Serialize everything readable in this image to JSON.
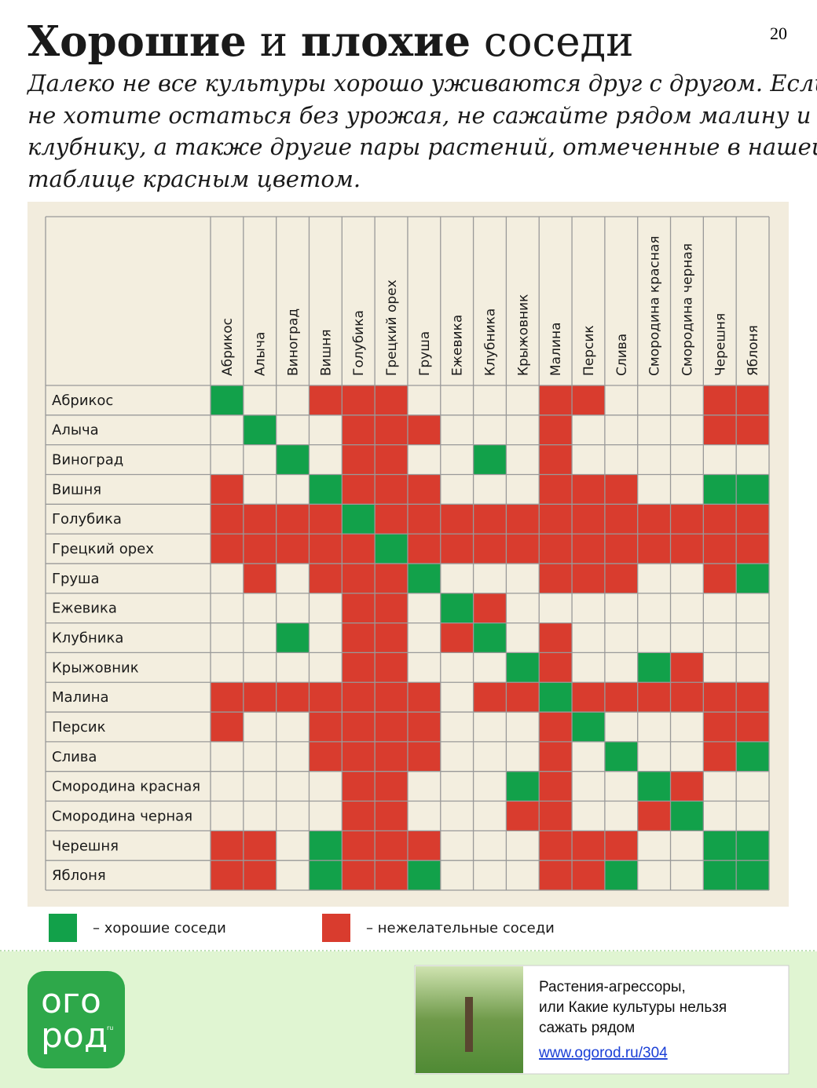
{
  "header": {
    "title": [
      {
        "text": "Хорошие",
        "bold": true
      },
      {
        "text": "и",
        "bold": false
      },
      {
        "text": "плохие",
        "bold": true
      },
      {
        "text": "соседи",
        "bold": false
      }
    ],
    "page_number": "20",
    "intro": [
      "Далеко не все культуры хорошо уживаются друг с другом. Если",
      "не хотите остаться без урожая, не сажайте рядом малину и",
      "клубнику, а также другие пары растений, отмеченные в нашей",
      "таблице красным цветом."
    ]
  },
  "table": {
    "columns": [
      "Абрикос",
      "Алыча",
      "Виноград",
      "Вишня",
      "Голубика",
      "Грецкий орех",
      "Груша",
      "Ежевика",
      "Клубника",
      "Крыжовник",
      "Малина",
      "Персик",
      "Слива",
      "Смородина красная",
      "Смородина черная",
      "Черешня",
      "Яблоня"
    ],
    "rows": [
      {
        "label": "Абрикос",
        "cells": [
          "g",
          null,
          null,
          "r",
          "r",
          "r",
          null,
          null,
          null,
          null,
          "r",
          "r",
          null,
          null,
          null,
          "r",
          "r"
        ]
      },
      {
        "label": "Алыча",
        "cells": [
          null,
          "g",
          null,
          null,
          "r",
          "r",
          "r",
          null,
          null,
          null,
          "r",
          null,
          null,
          null,
          null,
          "r",
          "r"
        ]
      },
      {
        "label": "Виноград",
        "cells": [
          null,
          null,
          "g",
          null,
          "r",
          "r",
          null,
          null,
          "g",
          null,
          "r",
          null,
          null,
          null,
          null,
          null,
          null
        ]
      },
      {
        "label": "Вишня",
        "cells": [
          "r",
          null,
          null,
          "g",
          "r",
          "r",
          "r",
          null,
          null,
          null,
          "r",
          "r",
          "r",
          null,
          null,
          "g",
          "g"
        ]
      },
      {
        "label": "Голубика",
        "cells": [
          "r",
          "r",
          "r",
          "r",
          "g",
          "r",
          "r",
          "r",
          "r",
          "r",
          "r",
          "r",
          "r",
          "r",
          "r",
          "r",
          "r"
        ]
      },
      {
        "label": "Грецкий орех",
        "cells": [
          "r",
          "r",
          "r",
          "r",
          "r",
          "g",
          "r",
          "r",
          "r",
          "r",
          "r",
          "r",
          "r",
          "r",
          "r",
          "r",
          "r"
        ]
      },
      {
        "label": "Груша",
        "cells": [
          null,
          "r",
          null,
          "r",
          "r",
          "r",
          "g",
          null,
          null,
          null,
          "r",
          "r",
          "r",
          null,
          null,
          "r",
          "g"
        ]
      },
      {
        "label": "Ежевика",
        "cells": [
          null,
          null,
          null,
          null,
          "r",
          "r",
          null,
          "g",
          "r",
          null,
          null,
          null,
          null,
          null,
          null,
          null,
          null
        ]
      },
      {
        "label": "Клубника",
        "cells": [
          null,
          null,
          "g",
          null,
          "r",
          "r",
          null,
          "r",
          "g",
          null,
          "r",
          null,
          null,
          null,
          null,
          null,
          null
        ]
      },
      {
        "label": "Крыжовник",
        "cells": [
          null,
          null,
          null,
          null,
          "r",
          "r",
          null,
          null,
          null,
          "g",
          "r",
          null,
          null,
          "g",
          "r",
          null,
          null
        ]
      },
      {
        "label": "Малина",
        "cells": [
          "r",
          "r",
          "r",
          "r",
          "r",
          "r",
          "r",
          null,
          "r",
          "r",
          "g",
          "r",
          "r",
          "r",
          "r",
          "r",
          "r"
        ]
      },
      {
        "label": "Персик",
        "cells": [
          "r",
          null,
          null,
          "r",
          "r",
          "r",
          "r",
          null,
          null,
          null,
          "r",
          "g",
          null,
          null,
          null,
          "r",
          "r"
        ]
      },
      {
        "label": "Слива",
        "cells": [
          null,
          null,
          null,
          "r",
          "r",
          "r",
          "r",
          null,
          null,
          null,
          "r",
          null,
          "g",
          null,
          null,
          "r",
          "g"
        ]
      },
      {
        "label": "Смородина красная",
        "cells": [
          null,
          null,
          null,
          null,
          "r",
          "r",
          null,
          null,
          null,
          "g",
          "r",
          null,
          null,
          "g",
          "r",
          null,
          null
        ]
      },
      {
        "label": "Смородина черная",
        "cells": [
          null,
          null,
          null,
          null,
          "r",
          "r",
          null,
          null,
          null,
          "r",
          "r",
          null,
          null,
          "r",
          "g",
          null,
          null
        ]
      },
      {
        "label": "Черешня",
        "cells": [
          "r",
          "r",
          null,
          "g",
          "r",
          "r",
          "r",
          null,
          null,
          null,
          "r",
          "r",
          "r",
          null,
          null,
          "g",
          "g"
        ]
      },
      {
        "label": "Яблоня",
        "cells": [
          "r",
          "r",
          null,
          "g",
          "r",
          "r",
          "g",
          null,
          null,
          null,
          "r",
          "r",
          "g",
          null,
          null,
          "g",
          "g"
        ]
      }
    ]
  },
  "legend": [
    {
      "key": "g",
      "color": "#12a14a",
      "text": "– хорошие соседи"
    },
    {
      "key": "r",
      "color": "#d93c2e",
      "text": "– нежелательные соседи"
    }
  ],
  "footer": {
    "logo": [
      "ого",
      "род"
    ],
    "logo_suffix": "ru",
    "ad_lines": [
      "Растения-агрессоры,",
      "или Какие культуры нельзя",
      "сажать рядом"
    ],
    "ad_link": "www.ogorod.ru/304"
  }
}
